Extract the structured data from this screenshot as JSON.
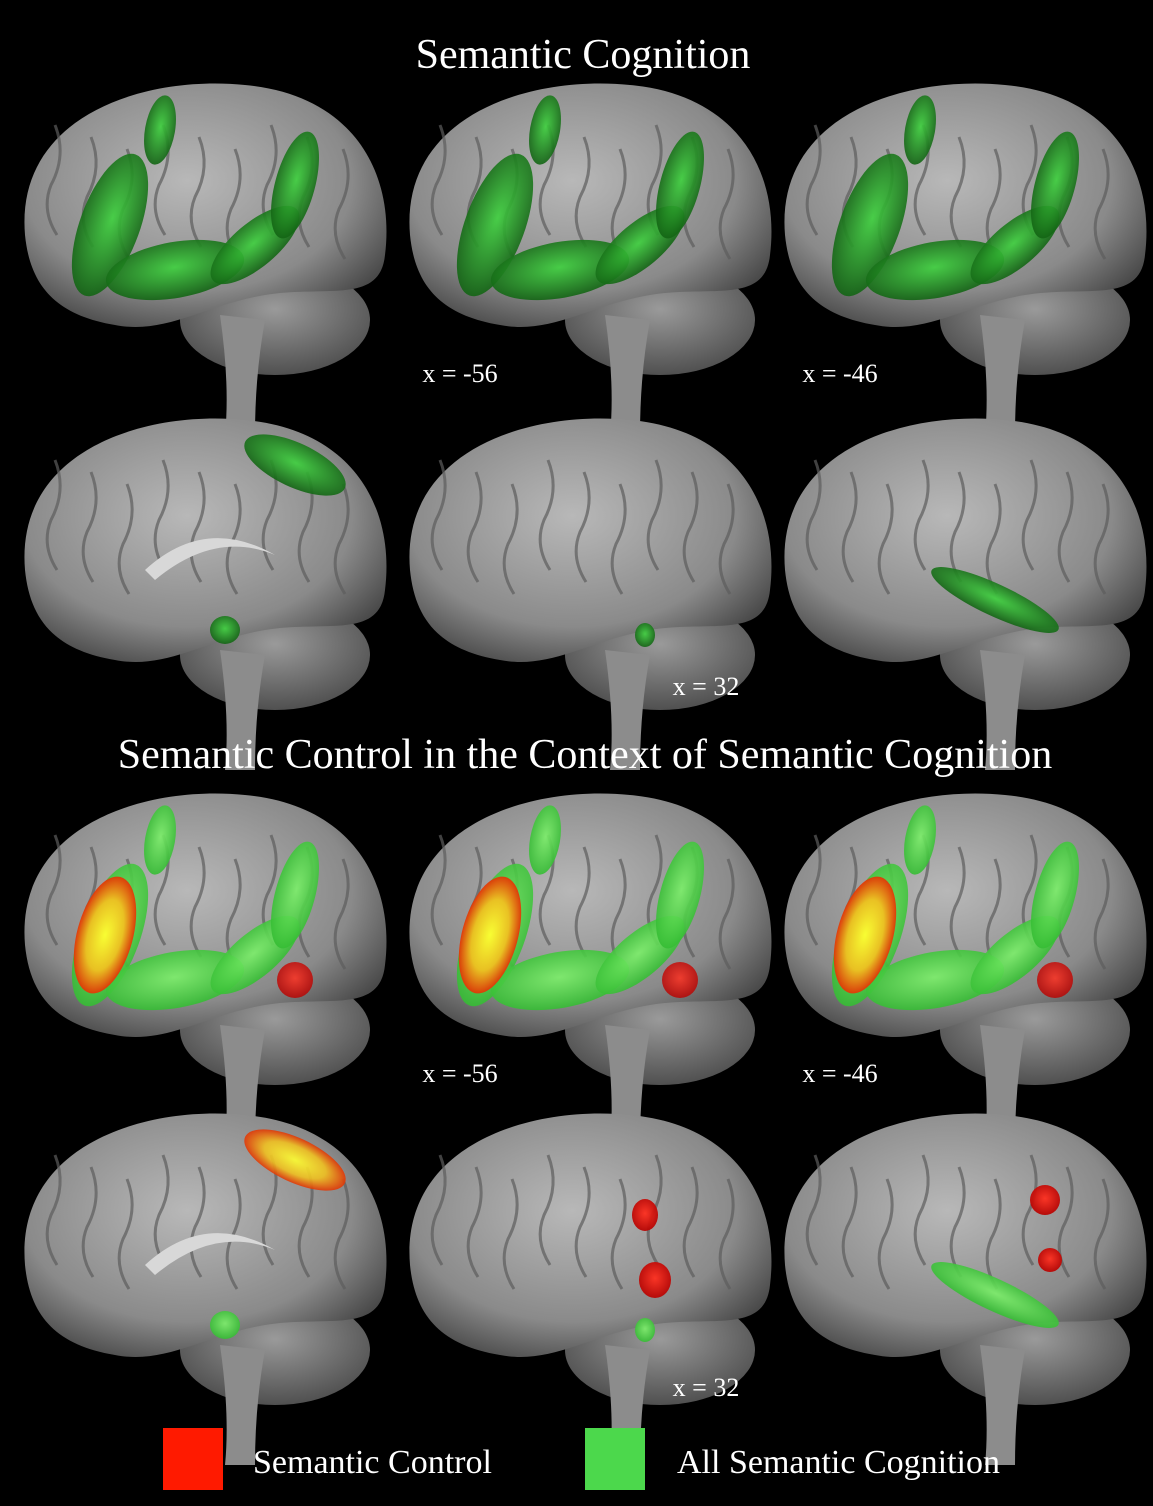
{
  "panels": [
    {
      "title": "Semantic Cognition",
      "labels": [
        "x = -56",
        "x = -46",
        "x = 32"
      ]
    },
    {
      "title": "Semantic Control in the Context of Semantic Cognition",
      "labels": [
        "x = -56",
        "x = -46",
        "x = 32"
      ]
    }
  ],
  "legend": [
    {
      "label": "Semantic Control",
      "color": "#ff1a00"
    },
    {
      "label": "All Semantic Cognition",
      "color": "#4cd84c"
    }
  ]
}
